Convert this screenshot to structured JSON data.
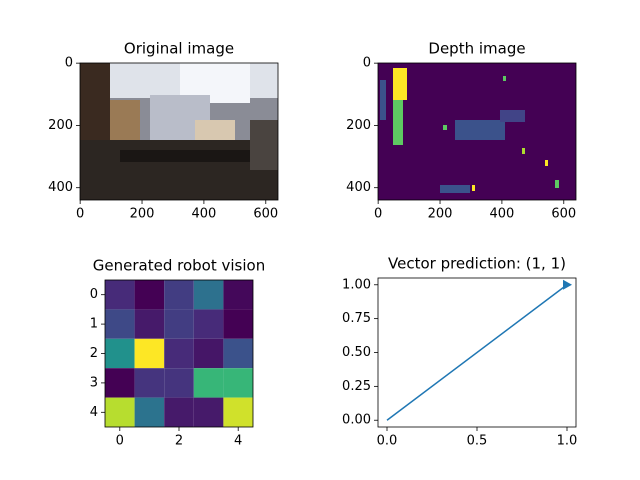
{
  "chart_data": [
    {
      "type": "image",
      "title": "Original image",
      "xlim": [
        -0.5,
        639.5
      ],
      "ylim": [
        439.5,
        -0.5
      ],
      "xticks": [
        0,
        200,
        400,
        600
      ],
      "yticks": [
        0,
        200,
        400
      ]
    },
    {
      "type": "image",
      "title": "Depth image",
      "xlim": [
        -0.5,
        639.5
      ],
      "ylim": [
        439.5,
        -0.5
      ],
      "xticks": [
        0,
        200,
        400,
        600
      ],
      "yticks": [
        0,
        200,
        400
      ]
    },
    {
      "type": "heatmap",
      "title": "Generated robot vision",
      "colormap": "viridis",
      "xlim": [
        -0.5,
        4.5
      ],
      "ylim": [
        4.5,
        -0.5
      ],
      "xticks": [
        0,
        2,
        4
      ],
      "yticks": [
        0,
        1,
        2,
        3,
        4
      ],
      "values": [
        [
          0.12,
          0.0,
          0.18,
          0.37,
          0.02
        ],
        [
          0.22,
          0.07,
          0.18,
          0.12,
          0.0
        ],
        [
          0.5,
          1.0,
          0.12,
          0.06,
          0.25
        ],
        [
          0.0,
          0.15,
          0.15,
          0.66,
          0.66
        ],
        [
          0.89,
          0.38,
          0.07,
          0.07,
          0.93
        ]
      ]
    },
    {
      "type": "line",
      "title": "Vector prediction: (1, 1)",
      "xlim": [
        -0.05,
        1.05
      ],
      "ylim": [
        -0.05,
        1.05
      ],
      "xticks": [
        {
          "value": 0,
          "label": "0.0"
        },
        {
          "value": 0.5,
          "label": "0.5"
        },
        {
          "value": 1,
          "label": "1.0"
        }
      ],
      "yticks": [
        {
          "value": 0,
          "label": "0.00"
        },
        {
          "value": 0.25,
          "label": "0.25"
        },
        {
          "value": 0.5,
          "label": "0.50"
        },
        {
          "value": 0.75,
          "label": "0.75"
        },
        {
          "value": 1,
          "label": "1.00"
        }
      ],
      "series": [
        {
          "color": "#1f77b4",
          "x": [
            0,
            1
          ],
          "values": [
            0,
            1
          ]
        }
      ]
    }
  ]
}
